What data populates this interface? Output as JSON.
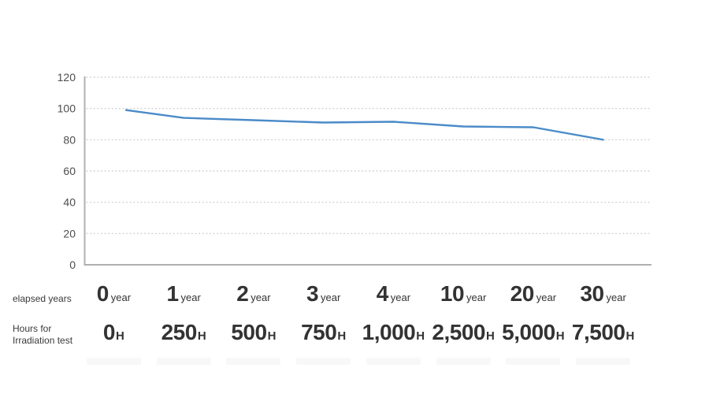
{
  "chart_data": {
    "type": "line",
    "title": "",
    "xlabel": "",
    "ylabel": "",
    "categories": [
      "0 year",
      "1 year",
      "2 year",
      "3 year",
      "4 year",
      "10 year",
      "20 year",
      "30 year"
    ],
    "hours_categories": [
      "0H",
      "250H",
      "500H",
      "750H",
      "1,000H",
      "2,500H",
      "5,000H",
      "7,500H"
    ],
    "values": [
      99,
      94,
      92.5,
      91,
      91.5,
      88.5,
      88,
      80
    ],
    "ylim": [
      0,
      120
    ],
    "yticks": [
      0,
      20,
      40,
      60,
      80,
      100,
      120
    ],
    "grid": "horizontal-dotted",
    "legend": "none",
    "line_color": "#4b8bc8"
  },
  "rows": {
    "years": {
      "header": "elapsed years",
      "suffix": "year",
      "values": [
        "0",
        "1",
        "2",
        "3",
        "4",
        "10",
        "20",
        "30"
      ]
    },
    "hours": {
      "header_line1": "Hours for",
      "header_line2": "Irradiation test",
      "suffix": "H",
      "values": [
        "0",
        "250",
        "500",
        "750",
        "1,000",
        "2,500",
        "5,000",
        "7,500"
      ]
    }
  },
  "colors": {
    "line": "#4b8bc8",
    "grid": "#cccccc",
    "axis": "#b0b0b0",
    "number_text": "#333333",
    "tick_text": "#4d4d4d",
    "faint_band": "#f8f8f8"
  }
}
